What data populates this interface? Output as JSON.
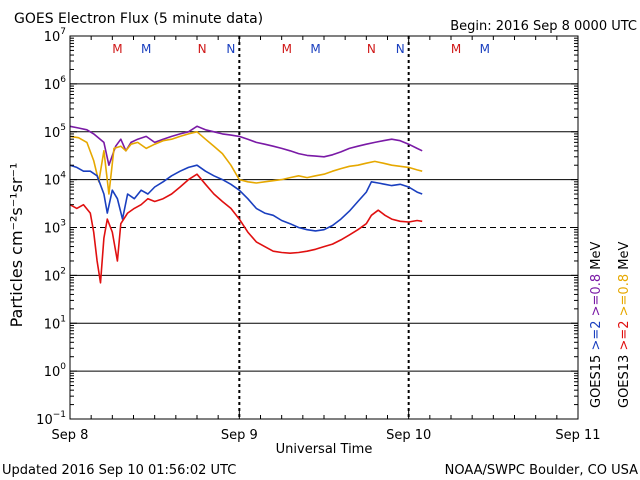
{
  "header": {
    "title": "GOES Electron Flux (5 minute data)",
    "begin": "Begin: 2016 Sep 8 0000 UTC"
  },
  "footer": {
    "updated": "Updated 2016 Sep 10 01:56:02 UTC",
    "credit": "NOAA/SWPC Boulder, CO USA"
  },
  "colors": {
    "goes15_ge2": "#1a3fbf",
    "goes15_ge08": "#7a1aa6",
    "goes13_ge2": "#e01010",
    "goes13_ge08": "#e6a800",
    "marker_m": "#d01818",
    "marker_n": "#1a3fbf"
  },
  "chart_data": {
    "type": "line",
    "title": "GOES Electron Flux (5 minute data)",
    "xlabel": "Universal Time",
    "ylabel": "Particles cm⁻²s⁻¹sr⁻¹",
    "yscale": "log",
    "ylim": [
      0.1,
      10000000
    ],
    "xlim": [
      0,
      3
    ],
    "x_ticks": [
      {
        "x": 0,
        "label": "Sep 8"
      },
      {
        "x": 1,
        "label": "Sep 9"
      },
      {
        "x": 2,
        "label": "Sep 10"
      },
      {
        "x": 3,
        "label": "Sep 11"
      }
    ],
    "y_tick_exponents": [
      -1,
      0,
      1,
      2,
      3,
      4,
      5,
      6,
      7
    ],
    "y_tick_base": "10",
    "threshold": {
      "value": 1000,
      "style": "dashed"
    },
    "legend_left": [
      {
        "text": "GOES15",
        "color": "#000000"
      },
      {
        "text": ">=2",
        "color": "#1a3fbf"
      },
      {
        "text": ">=0.8",
        "color": "#7a1aa6"
      },
      {
        "text": "MeV",
        "color": "#000000"
      }
    ],
    "legend_right": [
      {
        "text": "GOES13",
        "color": "#000000"
      },
      {
        "text": ">=2",
        "color": "#e01010"
      },
      {
        "text": ">=0.8",
        "color": "#e6a800"
      },
      {
        "text": "MeV",
        "color": "#000000"
      }
    ],
    "markers": [
      {
        "x": 0.28,
        "label": "M",
        "sat": "13"
      },
      {
        "x": 0.45,
        "label": "M",
        "sat": "15"
      },
      {
        "x": 0.78,
        "label": "N",
        "sat": "13"
      },
      {
        "x": 0.95,
        "label": "N",
        "sat": "15"
      },
      {
        "x": 1.28,
        "label": "M",
        "sat": "13"
      },
      {
        "x": 1.45,
        "label": "M",
        "sat": "15"
      },
      {
        "x": 1.78,
        "label": "N",
        "sat": "13"
      },
      {
        "x": 1.95,
        "label": "N",
        "sat": "15"
      },
      {
        "x": 2.28,
        "label": "M",
        "sat": "13"
      },
      {
        "x": 2.45,
        "label": "M",
        "sat": "15"
      }
    ],
    "series": [
      {
        "name": "GOES15 >=0.8 MeV",
        "color": "#7a1aa6",
        "points": [
          [
            0,
            130000
          ],
          [
            0.05,
            120000
          ],
          [
            0.1,
            110000
          ],
          [
            0.14,
            90000
          ],
          [
            0.2,
            60000
          ],
          [
            0.23,
            20000
          ],
          [
            0.27,
            50000
          ],
          [
            0.3,
            70000
          ],
          [
            0.33,
            40000
          ],
          [
            0.36,
            60000
          ],
          [
            0.4,
            70000
          ],
          [
            0.45,
            80000
          ],
          [
            0.5,
            60000
          ],
          [
            0.55,
            70000
          ],
          [
            0.6,
            80000
          ],
          [
            0.65,
            90000
          ],
          [
            0.7,
            100000
          ],
          [
            0.75,
            130000
          ],
          [
            0.8,
            110000
          ],
          [
            0.85,
            100000
          ],
          [
            0.9,
            90000
          ],
          [
            0.95,
            85000
          ],
          [
            1,
            80000
          ],
          [
            1.05,
            70000
          ],
          [
            1.1,
            60000
          ],
          [
            1.15,
            55000
          ],
          [
            1.2,
            50000
          ],
          [
            1.25,
            45000
          ],
          [
            1.3,
            40000
          ],
          [
            1.35,
            35000
          ],
          [
            1.4,
            32000
          ],
          [
            1.45,
            31000
          ],
          [
            1.5,
            30000
          ],
          [
            1.55,
            33000
          ],
          [
            1.6,
            38000
          ],
          [
            1.65,
            45000
          ],
          [
            1.7,
            50000
          ],
          [
            1.75,
            55000
          ],
          [
            1.8,
            60000
          ],
          [
            1.85,
            65000
          ],
          [
            1.9,
            70000
          ],
          [
            1.95,
            65000
          ],
          [
            2,
            55000
          ],
          [
            2.05,
            45000
          ],
          [
            2.08,
            40000
          ]
        ]
      },
      {
        "name": "GOES13 >=0.8 MeV",
        "color": "#e6a800",
        "points": [
          [
            0,
            80000
          ],
          [
            0.05,
            75000
          ],
          [
            0.1,
            60000
          ],
          [
            0.14,
            25000
          ],
          [
            0.17,
            9000
          ],
          [
            0.2,
            40000
          ],
          [
            0.23,
            5000
          ],
          [
            0.26,
            45000
          ],
          [
            0.3,
            50000
          ],
          [
            0.33,
            40000
          ],
          [
            0.36,
            55000
          ],
          [
            0.4,
            60000
          ],
          [
            0.45,
            45000
          ],
          [
            0.5,
            55000
          ],
          [
            0.55,
            65000
          ],
          [
            0.6,
            70000
          ],
          [
            0.65,
            80000
          ],
          [
            0.7,
            90000
          ],
          [
            0.75,
            100000
          ],
          [
            0.8,
            70000
          ],
          [
            0.85,
            50000
          ],
          [
            0.9,
            35000
          ],
          [
            0.95,
            20000
          ],
          [
            1,
            10000
          ],
          [
            1.05,
            9000
          ],
          [
            1.1,
            8500
          ],
          [
            1.15,
            9000
          ],
          [
            1.2,
            9500
          ],
          [
            1.25,
            10000
          ],
          [
            1.3,
            11000
          ],
          [
            1.35,
            12000
          ],
          [
            1.4,
            11000
          ],
          [
            1.45,
            12000
          ],
          [
            1.5,
            13000
          ],
          [
            1.55,
            15000
          ],
          [
            1.6,
            17000
          ],
          [
            1.65,
            19000
          ],
          [
            1.7,
            20000
          ],
          [
            1.75,
            22000
          ],
          [
            1.8,
            24000
          ],
          [
            1.85,
            22000
          ],
          [
            1.9,
            20000
          ],
          [
            1.95,
            19000
          ],
          [
            2,
            18000
          ],
          [
            2.05,
            16000
          ],
          [
            2.08,
            15000
          ]
        ]
      },
      {
        "name": "GOES15 >=2 MeV",
        "color": "#1a3fbf",
        "points": [
          [
            0,
            20000
          ],
          [
            0.04,
            18000
          ],
          [
            0.08,
            15000
          ],
          [
            0.12,
            15000
          ],
          [
            0.16,
            12000
          ],
          [
            0.2,
            5000
          ],
          [
            0.22,
            2000
          ],
          [
            0.25,
            6000
          ],
          [
            0.28,
            4000
          ],
          [
            0.31,
            1500
          ],
          [
            0.34,
            5000
          ],
          [
            0.38,
            4000
          ],
          [
            0.42,
            6000
          ],
          [
            0.46,
            5000
          ],
          [
            0.5,
            7000
          ],
          [
            0.55,
            9000
          ],
          [
            0.6,
            12000
          ],
          [
            0.65,
            15000
          ],
          [
            0.7,
            18000
          ],
          [
            0.75,
            20000
          ],
          [
            0.8,
            15000
          ],
          [
            0.85,
            12000
          ],
          [
            0.9,
            10000
          ],
          [
            0.95,
            8000
          ],
          [
            1,
            6000
          ],
          [
            1.05,
            4000
          ],
          [
            1.1,
            2500
          ],
          [
            1.15,
            2000
          ],
          [
            1.2,
            1800
          ],
          [
            1.25,
            1400
          ],
          [
            1.3,
            1200
          ],
          [
            1.35,
            1000
          ],
          [
            1.4,
            900
          ],
          [
            1.45,
            850
          ],
          [
            1.5,
            900
          ],
          [
            1.55,
            1100
          ],
          [
            1.6,
            1500
          ],
          [
            1.65,
            2200
          ],
          [
            1.7,
            3500
          ],
          [
            1.75,
            5500
          ],
          [
            1.78,
            9000
          ],
          [
            1.82,
            8500
          ],
          [
            1.86,
            8000
          ],
          [
            1.9,
            7500
          ],
          [
            1.95,
            8000
          ],
          [
            2,
            7000
          ],
          [
            2.05,
            5500
          ],
          [
            2.08,
            5000
          ]
        ]
      },
      {
        "name": "GOES13 >=2 MeV",
        "color": "#e01010",
        "points": [
          [
            0,
            3000
          ],
          [
            0.04,
            2500
          ],
          [
            0.08,
            3000
          ],
          [
            0.12,
            2000
          ],
          [
            0.14,
            800
          ],
          [
            0.16,
            200
          ],
          [
            0.18,
            70
          ],
          [
            0.2,
            600
          ],
          [
            0.22,
            1500
          ],
          [
            0.25,
            800
          ],
          [
            0.28,
            200
          ],
          [
            0.3,
            1200
          ],
          [
            0.34,
            2000
          ],
          [
            0.38,
            2500
          ],
          [
            0.42,
            3000
          ],
          [
            0.46,
            4000
          ],
          [
            0.5,
            3500
          ],
          [
            0.55,
            4000
          ],
          [
            0.6,
            5000
          ],
          [
            0.65,
            7000
          ],
          [
            0.7,
            10000
          ],
          [
            0.75,
            13000
          ],
          [
            0.8,
            8000
          ],
          [
            0.85,
            5000
          ],
          [
            0.9,
            3500
          ],
          [
            0.95,
            2500
          ],
          [
            1,
            1500
          ],
          [
            1.05,
            800
          ],
          [
            1.1,
            500
          ],
          [
            1.15,
            400
          ],
          [
            1.2,
            320
          ],
          [
            1.25,
            300
          ],
          [
            1.3,
            290
          ],
          [
            1.35,
            300
          ],
          [
            1.4,
            320
          ],
          [
            1.45,
            350
          ],
          [
            1.5,
            400
          ],
          [
            1.55,
            450
          ],
          [
            1.6,
            550
          ],
          [
            1.65,
            700
          ],
          [
            1.7,
            900
          ],
          [
            1.75,
            1200
          ],
          [
            1.78,
            1800
          ],
          [
            1.82,
            2300
          ],
          [
            1.86,
            1800
          ],
          [
            1.9,
            1500
          ],
          [
            1.95,
            1350
          ],
          [
            2,
            1300
          ],
          [
            2.05,
            1400
          ],
          [
            2.08,
            1350
          ]
        ]
      }
    ]
  }
}
